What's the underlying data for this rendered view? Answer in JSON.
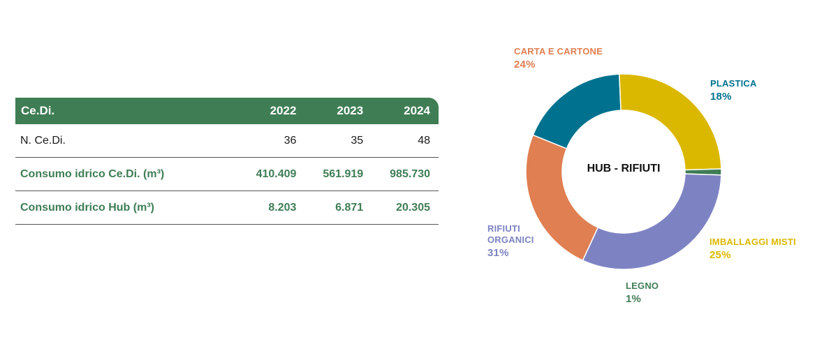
{
  "table": {
    "header": [
      "Ce.Di.",
      "2022",
      "2023",
      "2024"
    ],
    "rows": [
      {
        "label": "N. Ce.Di.",
        "values": [
          "36",
          "35",
          "48"
        ],
        "style": "plain"
      },
      {
        "label": "Consumo idrico Ce.Di. (m³)",
        "values": [
          "410.409",
          "561.919",
          "985.730"
        ],
        "style": "green"
      },
      {
        "label": "Consumo idrico Hub (m³)",
        "values": [
          "8.203",
          "6.871",
          "20.305"
        ],
        "style": "green"
      }
    ]
  },
  "chart_data": {
    "type": "pie",
    "title": "HUB - RIFIUTI",
    "slices": [
      {
        "name": "PLASTICA",
        "value": 18,
        "label": "18%",
        "color": "#00728f"
      },
      {
        "name": "IMBALLAGGI MISTI",
        "value": 25,
        "label": "25%",
        "color": "#dbb800"
      },
      {
        "name": "LEGNO",
        "value": 1,
        "label": "1%",
        "color": "#3f7d55"
      },
      {
        "name": "RIFIUTI ORGANICI",
        "value": 31,
        "label": "31%",
        "color": "#7d83c2"
      },
      {
        "name": "CARTA E CARTONE",
        "value": 24,
        "label": "24%",
        "color": "#e07f51"
      }
    ]
  },
  "colors": {
    "table_header_bg": "#3f7d55",
    "table_green_text": "#3f7d55"
  }
}
